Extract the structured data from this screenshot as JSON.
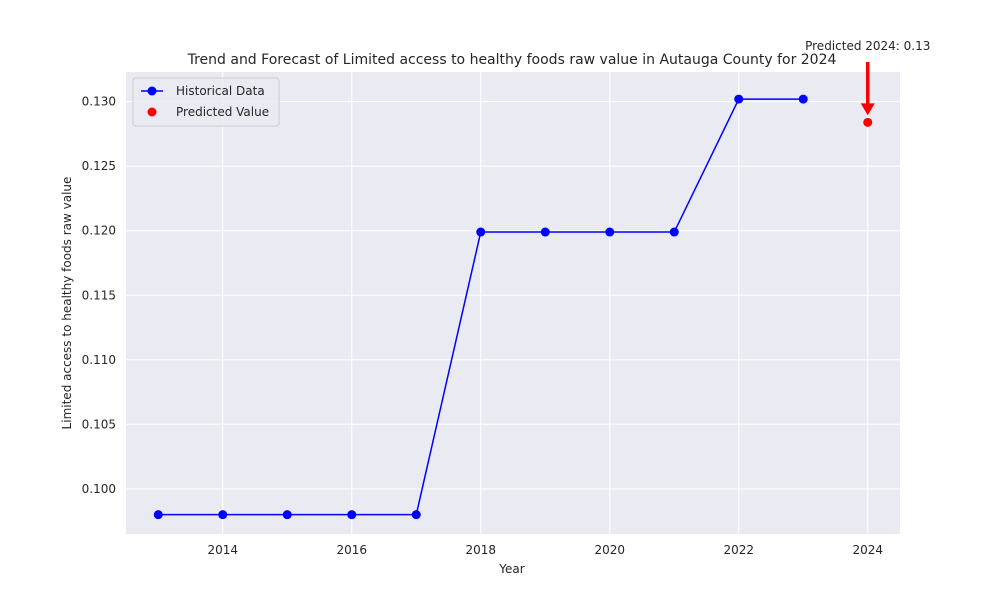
{
  "chart_data": {
    "type": "line",
    "title": "Trend and Forecast of Limited access to healthy foods raw value in Autauga County for 2024",
    "xlabel": "Year",
    "ylabel": "Limited access to healthy foods raw value",
    "xlim": [
      2012.5,
      2024.5
    ],
    "ylim": [
      0.0965,
      0.1323
    ],
    "x_ticks": [
      2014,
      2016,
      2018,
      2020,
      2022,
      2024
    ],
    "y_ticks": [
      0.1,
      0.105,
      0.11,
      0.115,
      0.12,
      0.125,
      0.13
    ],
    "y_tick_labels": [
      "0.100",
      "0.105",
      "0.110",
      "0.115",
      "0.120",
      "0.125",
      "0.130"
    ],
    "grid": true,
    "legend_position": "upper-left",
    "series": [
      {
        "name": "Historical Data",
        "color": "#0000ff",
        "x": [
          2013,
          2014,
          2015,
          2016,
          2017,
          2018,
          2019,
          2020,
          2021,
          2022,
          2023
        ],
        "values": [
          0.098,
          0.098,
          0.098,
          0.098,
          0.098,
          0.1199,
          0.1199,
          0.1199,
          0.1199,
          0.1302,
          0.1302
        ]
      },
      {
        "name": "Predicted Value",
        "color": "#ff0000",
        "x": [
          2024
        ],
        "values": [
          0.1284
        ]
      }
    ],
    "annotation": {
      "text": "Predicted 2024: 0.13",
      "x": 2024,
      "y": 0.1284,
      "color": "#ff0000"
    }
  }
}
